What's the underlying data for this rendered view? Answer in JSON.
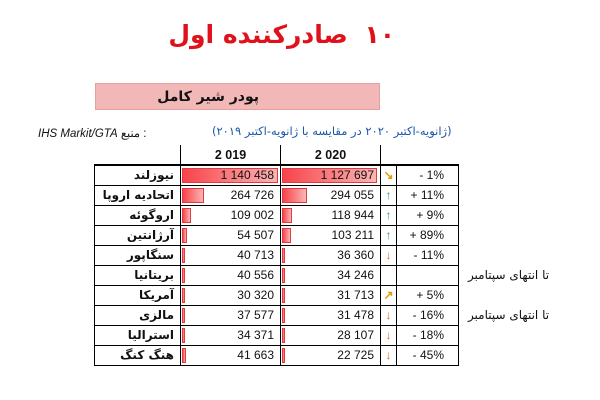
{
  "title": {
    "number": "۱۰",
    "text": "صادرکننده اول"
  },
  "subtitle": "پودر شیر کامل",
  "source": {
    "prefix": "منبع :",
    "name": "IHS Markit/GTA"
  },
  "period": "(ژانویه-اکتبر ۲۰۲۰ در مقایسه با ژانویه-اکتبر ۲۰۱۹)",
  "columns": {
    "y2019": "2 019",
    "y2020": "2 020"
  },
  "rows": [
    {
      "country": "نیوزلند",
      "v2019": "1 140 458",
      "v2020": "1 127 697",
      "icon": "↘",
      "icon_type": "diag-down",
      "icon_name": "arrow-down-right-icon",
      "change": "- 1%",
      "note": "",
      "bar2019": 1140458,
      "bar2020": 1127697
    },
    {
      "country": "اتحادیه اروپا",
      "v2019": "264 726",
      "v2020": "294 055",
      "icon": "↑",
      "icon_type": "up",
      "icon_name": "arrow-up-icon",
      "change": "+ 11%",
      "note": "",
      "bar2019": 264726,
      "bar2020": 294055
    },
    {
      "country": "اروگوئه",
      "v2019": "109 002",
      "v2020": "118 944",
      "icon": "↑",
      "icon_type": "up",
      "icon_name": "arrow-up-icon",
      "change": "+ 9%",
      "note": "",
      "bar2019": 109002,
      "bar2020": 118944
    },
    {
      "country": "آرژانتین",
      "v2019": "54 507",
      "v2020": "103 211",
      "icon": "↑",
      "icon_type": "up",
      "icon_name": "arrow-up-icon",
      "change": "+ 89%",
      "note": "",
      "bar2019": 54507,
      "bar2020": 103211
    },
    {
      "country": "سنگاپور",
      "v2019": "40 713",
      "v2020": "36 360",
      "icon": "↓",
      "icon_type": "down",
      "icon_name": "arrow-down-icon",
      "change": "- 11%",
      "note": "",
      "bar2019": 40713,
      "bar2020": 36360
    },
    {
      "country": "بریتانیا",
      "v2019": "40 556",
      "v2020": "34 246",
      "icon": "",
      "icon_type": "",
      "icon_name": "",
      "change": "",
      "note": "تا انتهای سپتامبر",
      "bar2019": 40556,
      "bar2020": 34246
    },
    {
      "country": "آمریکا",
      "v2019": "30 320",
      "v2020": "31 713",
      "icon": "↗",
      "icon_type": "diag-up",
      "icon_name": "arrow-up-right-icon",
      "change": "+ 5%",
      "note": "",
      "bar2019": 30320,
      "bar2020": 31713
    },
    {
      "country": "مالزی",
      "v2019": "37 577",
      "v2020": "31 478",
      "icon": "↓",
      "icon_type": "down",
      "icon_name": "arrow-down-icon",
      "change": "- 16%",
      "note": "تا انتهای سپتامبر",
      "bar2019": 37577,
      "bar2020": 31478
    },
    {
      "country": "استرالیا",
      "v2019": "34 371",
      "v2020": "28 107",
      "icon": "↓",
      "icon_type": "down",
      "icon_name": "arrow-down-icon",
      "change": "- 18%",
      "note": "",
      "bar2019": 34371,
      "bar2020": 28107
    },
    {
      "country": "هنگ کنگ",
      "v2019": "41 663",
      "v2020": "22 725",
      "icon": "↓",
      "icon_type": "down",
      "icon_name": "arrow-down-icon",
      "change": "- 45%",
      "note": "",
      "bar2019": 41663,
      "bar2020": 22725
    }
  ],
  "bar_max": 1140458
}
